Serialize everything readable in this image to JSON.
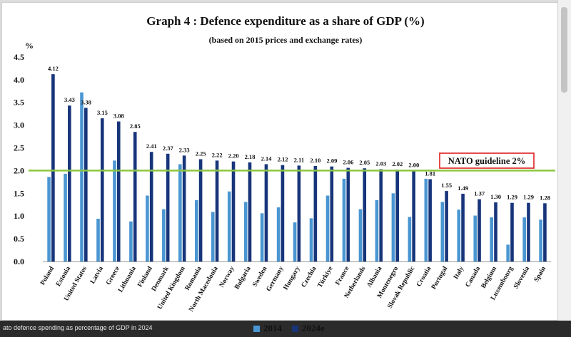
{
  "caption": "ato defence spending as percentage of GDP in 2024",
  "colors": {
    "s2014": "#4a96d2",
    "s2024": "#17357a",
    "guideline": "#8dc63f",
    "guideline_box": "#e02020"
  },
  "chart_data": {
    "type": "bar",
    "title": "Graph 4 : Defence expenditure as a share of GDP (%)",
    "subtitle": "(based on 2015 prices and exchange rates)",
    "ylabel": "%",
    "ylim": [
      0,
      4.5
    ],
    "yticks": [
      "0.0",
      "0.5",
      "1.0",
      "1.5",
      "2.0",
      "2.5",
      "3.0",
      "3.5",
      "4.0",
      "4.5"
    ],
    "categories": [
      "Poland",
      "Estonia",
      "United States",
      "Latvia",
      "Greece",
      "Lithuania",
      "Finland",
      "Denmark",
      "United Kingdom",
      "Romania",
      "North Macedonia",
      "Norway",
      "Bulgaria",
      "Sweden",
      "Germany",
      "Hungary",
      "Czechia",
      "Türkiye",
      "France",
      "Netherlands",
      "Albania",
      "Montenegro",
      "Slovak Republic",
      "Croatia",
      "Portugal",
      "Italy",
      "Canada",
      "Belgium",
      "Luxembourg",
      "Slovenia",
      "Spain"
    ],
    "series": [
      {
        "name": "2014",
        "values": [
          1.86,
          1.93,
          3.72,
          0.94,
          2.22,
          0.88,
          1.45,
          1.15,
          2.14,
          1.35,
          1.09,
          1.54,
          1.31,
          1.06,
          1.19,
          0.86,
          0.95,
          1.45,
          1.82,
          1.15,
          1.35,
          1.5,
          0.98,
          1.82,
          1.31,
          1.14,
          1.01,
          0.97,
          0.37,
          0.97,
          0.92
        ]
      },
      {
        "name": "2024e",
        "values": [
          4.12,
          3.43,
          3.38,
          3.15,
          3.08,
          2.85,
          2.41,
          2.37,
          2.33,
          2.25,
          2.22,
          2.2,
          2.18,
          2.14,
          2.12,
          2.11,
          2.1,
          2.09,
          2.06,
          2.05,
          2.03,
          2.02,
          2.0,
          1.81,
          1.55,
          1.49,
          1.37,
          1.3,
          1.29,
          1.29,
          1.28
        ]
      }
    ],
    "data_labels": [
      "4.12",
      "3.43",
      "3.38",
      "3.15",
      "3.08",
      "2.85",
      "2.41",
      "2.37",
      "2.33",
      "2.25",
      "2.22",
      "2.20",
      "2.18",
      "2.14",
      "2.12",
      "2.11",
      "2.10",
      "2.09",
      "2.06",
      "2.05",
      "2.03",
      "2.02",
      "2.00",
      "1.81",
      "1.55",
      "1.49",
      "1.37",
      "1.30",
      "1.29",
      "1.29",
      "1.28"
    ],
    "guideline": {
      "value": 2.0,
      "label": "NATO guideline 2%"
    },
    "legend": [
      "2014",
      "2024e"
    ]
  }
}
